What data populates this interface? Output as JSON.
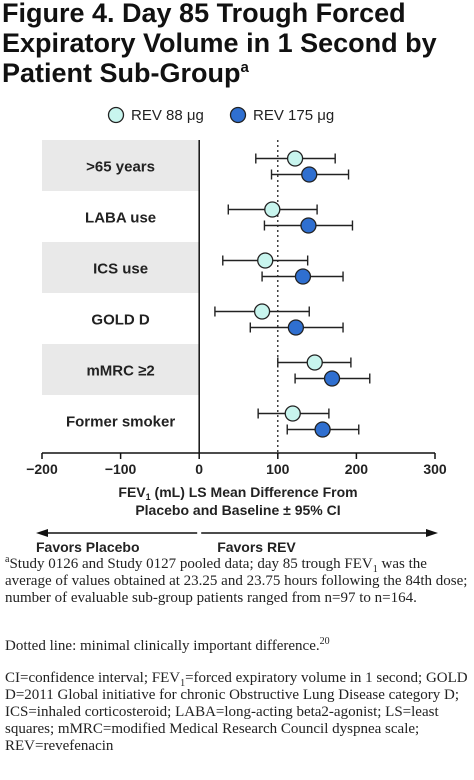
{
  "figure": {
    "title": "Figure 4. Day 85 Trough Forced Expiratory Volume in 1 Second by Patient Sub-Group",
    "title_sup": "a"
  },
  "chart_data": {
    "type": "forest",
    "categories": [
      ">65 years",
      "LABA use",
      "ICS use",
      "GOLD D",
      "mMRC ≥2",
      "Former smoker"
    ],
    "series": [
      {
        "name": "REV 88 μg",
        "color": "#c8f5ee",
        "points": [
          {
            "est": 122,
            "low": 72,
            "high": 173
          },
          {
            "est": 93,
            "low": 37,
            "high": 150
          },
          {
            "est": 84,
            "low": 30,
            "high": 138
          },
          {
            "est": 80,
            "low": 20,
            "high": 140
          },
          {
            "est": 147,
            "low": 100,
            "high": 193
          },
          {
            "est": 119,
            "low": 75,
            "high": 165
          }
        ]
      },
      {
        "name": "REV 175 μg",
        "color": "#2f6fd0",
        "points": [
          {
            "est": 140,
            "low": 92,
            "high": 190
          },
          {
            "est": 139,
            "low": 83,
            "high": 195
          },
          {
            "est": 132,
            "low": 80,
            "high": 183
          },
          {
            "est": 123,
            "low": 65,
            "high": 183
          },
          {
            "est": 169,
            "low": 122,
            "high": 217
          },
          {
            "est": 157,
            "low": 112,
            "high": 203
          }
        ]
      }
    ],
    "xlim": [
      -200,
      300
    ],
    "xticks": [
      "−200",
      "−100",
      "0",
      "100",
      "200",
      "300"
    ],
    "xtick_values": [
      -200,
      -100,
      0,
      100,
      200,
      300
    ],
    "reference_line": {
      "value": 100,
      "style": "dotted"
    },
    "xlabel_line1_pre": "FEV",
    "xlabel_line1_sub": "1",
    "xlabel_line1_post": " (mL) LS Mean Difference From",
    "xlabel_line2": "Placebo and Baseline ± 95% CI",
    "favors_left": "Favors Placebo",
    "favors_right": "Favors REV",
    "legend_position": "top",
    "row_shading": "alternating gray"
  },
  "footnotes": {
    "a_marker": "a",
    "a_text_1": "Study 0126 and Study 0127 pooled data; day 85 trough FEV",
    "a_sub": "1",
    "a_text_2": " was the average of values obtained at 23.25 and 23.75 hours following the 84th dose; number of evaluable sub-group patients ranged from n=97 to n=164.",
    "dotted_text": "Dotted line: minimal clinically important difference.",
    "dotted_ref": "20",
    "abbr_1": "CI=confidence interval; FEV",
    "abbr_sub": "1",
    "abbr_2": "=forced expiratory volume in 1 second; GOLD D=2011 Global initiative for chronic Obstructive Lung Disease category D; ICS=inhaled corticosteroid; LABA=long-acting beta2-agonist; LS=least squares; mMRC=modified Medical Research Council dyspnea scale; REV=revefenacin"
  }
}
